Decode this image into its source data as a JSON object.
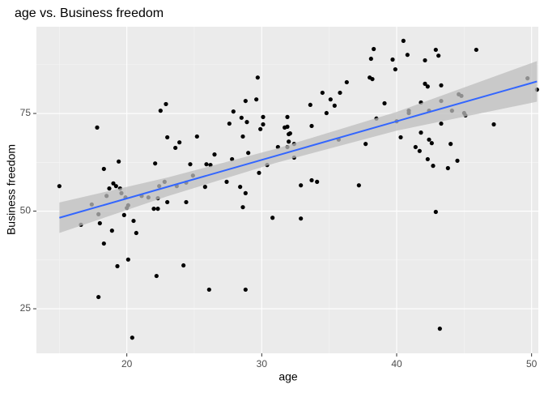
{
  "chart_data": {
    "type": "scatter",
    "title": "age vs. Business freedom",
    "x_label": "age",
    "y_label": "Business freedom",
    "xlim": [
      13.3,
      50.5
    ],
    "ylim": [
      13.6,
      97.2
    ],
    "xticks": [
      20,
      30,
      40,
      50
    ],
    "yticks": [
      25,
      50,
      75
    ],
    "grid": true,
    "point_color": "#000000",
    "x": [
      15.0,
      16.6,
      17.4,
      17.8,
      17.9,
      17.9,
      18.0,
      18.3,
      18.3,
      18.5,
      18.7,
      18.9,
      19.0,
      19.2,
      19.3,
      19.4,
      19.5,
      19.6,
      19.8,
      19.9,
      20.0,
      20.1,
      20.1,
      20.4,
      20.5,
      20.7,
      21.1,
      21.6,
      22.0,
      22.1,
      22.2,
      22.3,
      22.3,
      22.4,
      22.5,
      22.8,
      22.9,
      23.0,
      23.0,
      23.6,
      23.7,
      23.9,
      24.2,
      24.4,
      24.4,
      24.7,
      24.9,
      25.2,
      25.8,
      25.9,
      26.1,
      26.2,
      26.5,
      27.4,
      27.6,
      27.8,
      27.9,
      28.4,
      28.5,
      28.6,
      28.6,
      28.8,
      28.8,
      28.8,
      28.9,
      29.0,
      29.6,
      29.7,
      29.8,
      29.9,
      30.1,
      30.1,
      30.4,
      30.8,
      31.2,
      31.7,
      31.9,
      31.9,
      31.9,
      32.0,
      32.0,
      32.1,
      32.4,
      32.4,
      32.9,
      32.9,
      33.6,
      33.7,
      33.7,
      34.1,
      34.5,
      34.8,
      35.1,
      35.4,
      35.7,
      35.8,
      36.3,
      37.2,
      37.7,
      38.0,
      38.1,
      38.2,
      38.3,
      38.5,
      39.1,
      39.7,
      39.9,
      40.0,
      40.3,
      40.5,
      40.8,
      40.9,
      40.9,
      41.4,
      41.7,
      41.8,
      41.8,
      42.1,
      42.1,
      42.3,
      42.3,
      42.4,
      42.4,
      42.6,
      42.7,
      42.9,
      42.9,
      43.1,
      43.2,
      43.3,
      43.3,
      43.3,
      43.8,
      44.0,
      44.1,
      44.5,
      44.6,
      44.8,
      45.0,
      45.1,
      45.9,
      47.2,
      49.7,
      50.4
    ],
    "y": [
      56.4,
      46.5,
      51.7,
      71.4,
      28.0,
      49.2,
      46.9,
      60.8,
      41.7,
      53.9,
      55.8,
      45.0,
      57.1,
      56.4,
      35.9,
      62.7,
      55.8,
      54.6,
      49.0,
      53.5,
      50.8,
      51.5,
      37.6,
      17.6,
      47.5,
      44.4,
      53.9,
      53.5,
      50.6,
      62.2,
      33.4,
      53.3,
      50.6,
      56.4,
      75.7,
      57.5,
      77.4,
      52.3,
      68.9,
      66.2,
      56.4,
      67.6,
      36.1,
      57.3,
      52.3,
      62.0,
      59.1,
      69.1,
      56.2,
      62.0,
      29.9,
      61.8,
      64.5,
      57.5,
      72.4,
      63.3,
      75.5,
      56.2,
      73.9,
      51.0,
      69.1,
      29.9,
      54.6,
      78.2,
      72.8,
      64.9,
      78.6,
      84.2,
      59.8,
      71.0,
      74.1,
      72.2,
      61.8,
      48.3,
      66.4,
      71.4,
      74.1,
      71.6,
      66.4,
      67.8,
      69.7,
      69.9,
      63.7,
      67.2,
      56.6,
      48.1,
      77.2,
      71.8,
      57.9,
      57.5,
      80.3,
      75.1,
      78.6,
      77.0,
      68.3,
      80.3,
      83.0,
      56.6,
      67.2,
      84.2,
      89.0,
      83.8,
      91.5,
      73.7,
      77.6,
      88.8,
      86.3,
      73.0,
      68.9,
      93.6,
      90.0,
      75.7,
      75.1,
      66.4,
      65.4,
      70.1,
      77.8,
      88.6,
      82.6,
      81.9,
      63.3,
      75.7,
      68.3,
      67.4,
      61.6,
      91.3,
      49.8,
      89.8,
      19.9,
      72.4,
      82.2,
      78.2,
      61.0,
      67.2,
      75.7,
      62.9,
      79.9,
      79.5,
      75.1,
      74.5,
      91.3,
      72.2,
      84.0,
      81.1
    ],
    "fit": {
      "color": "#3366ff",
      "band_color": "#bebebe",
      "x": [
        15.0,
        23.0,
        31.0,
        40.0,
        50.4
      ],
      "y": [
        48.3,
        56.2,
        64.1,
        73.0,
        83.2
      ],
      "lower": [
        44.4,
        53.8,
        62.3,
        70.6,
        78.0
      ],
      "upper": [
        52.2,
        58.6,
        65.9,
        75.4,
        88.4
      ]
    }
  }
}
